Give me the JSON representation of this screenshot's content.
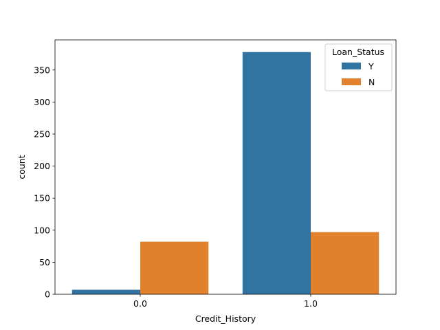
{
  "chart_data": {
    "type": "bar",
    "categories": [
      "0.0",
      "1.0"
    ],
    "series": [
      {
        "name": "Y",
        "values": [
          7,
          378
        ],
        "color": "#3274a1"
      },
      {
        "name": "N",
        "values": [
          82,
          97
        ],
        "color": "#e1812c"
      }
    ],
    "title": "",
    "xlabel": "Credit_History",
    "ylabel": "count",
    "ylim": [
      0,
      397
    ],
    "yticks": [
      0,
      50,
      100,
      150,
      200,
      250,
      300,
      350
    ],
    "legend": {
      "title": "Loan_Status",
      "placement": "top-right"
    },
    "grid": false
  }
}
